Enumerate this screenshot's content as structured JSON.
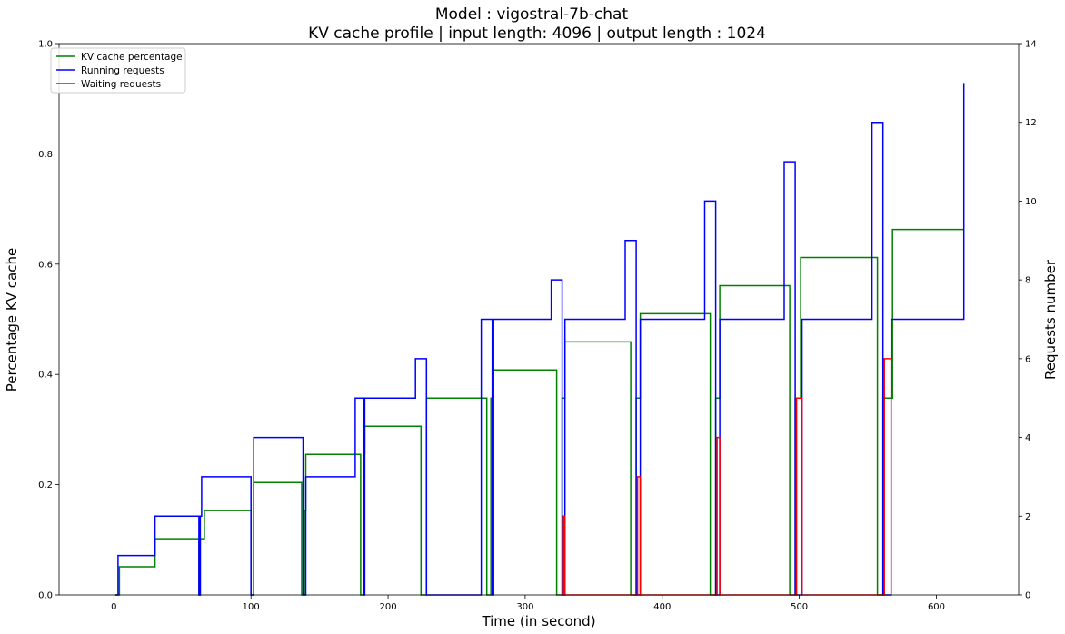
{
  "chart_data": {
    "type": "line",
    "title": "Model : vigostral-7b-chat",
    "subtitle": "KV cache profile | input length: 4096 | output length : 1024",
    "xlabel": "Time (in second)",
    "ylabel": "Percentage KV cache",
    "y2label": "Requests number",
    "xlim": [
      -40,
      660
    ],
    "ylim": [
      0,
      1.0
    ],
    "y2lim": [
      0,
      14
    ],
    "xticks": [
      0,
      100,
      200,
      300,
      400,
      500,
      600
    ],
    "yticks": [
      0.0,
      0.2,
      0.4,
      0.6,
      0.8,
      1.0
    ],
    "y2ticks": [
      0,
      2,
      4,
      6,
      8,
      10,
      12,
      14
    ],
    "legend_position": "top-left",
    "grid": false,
    "series": [
      {
        "name": "KV cache percentage",
        "axis": "left",
        "color": "#008000",
        "x": [
          1,
          4,
          28,
          30,
          60,
          62,
          63,
          64,
          66,
          97,
          100,
          102,
          133,
          137,
          139,
          140,
          176,
          180,
          182,
          183,
          220,
          224,
          228,
          268,
          272,
          275,
          276,
          319,
          323,
          327,
          329,
          373,
          377,
          381,
          383,
          384,
          431,
          435,
          439,
          441,
          442,
          489,
          493,
          497,
          500,
          501,
          553,
          557,
          561,
          567,
          568,
          620
        ],
        "y": [
          0,
          0.051,
          0.051,
          0.102,
          0.102,
          0,
          0.102,
          0.102,
          0.153,
          0.153,
          0,
          0.204,
          0.204,
          0,
          0.153,
          0.255,
          0.255,
          0,
          0.255,
          0.306,
          0.306,
          0,
          0.357,
          0.357,
          0,
          0.357,
          0.408,
          0.408,
          0,
          0.357,
          0.459,
          0.459,
          0,
          0.357,
          0.357,
          0.51,
          0.51,
          0,
          0.357,
          0.357,
          0.561,
          0.561,
          0,
          0.357,
          0.357,
          0.612,
          0.612,
          0,
          0.357,
          0.357,
          0.663,
          0.663
        ]
      },
      {
        "name": "Running requests",
        "axis": "right",
        "color": "#0000ff",
        "x": [
          1,
          3,
          28,
          30,
          60,
          62,
          63,
          64,
          97,
          100,
          102,
          135,
          138,
          140,
          176,
          180,
          182,
          183,
          220,
          224,
          228,
          268,
          272,
          276,
          277,
          319,
          323,
          327,
          329,
          373,
          377,
          381,
          384,
          431,
          435,
          439,
          442,
          489,
          493,
          497,
          502,
          553,
          557,
          561,
          567,
          620
        ],
        "y": [
          0,
          1,
          1,
          2,
          2,
          0,
          2,
          3,
          3,
          0,
          4,
          4,
          0,
          3,
          5,
          5,
          0,
          5,
          6,
          6,
          0,
          7,
          7,
          0,
          7,
          8,
          8,
          0,
          7,
          9,
          9,
          0,
          7,
          10,
          10,
          0,
          7,
          11,
          11,
          0,
          7,
          12,
          12,
          0,
          7,
          13
        ]
      },
      {
        "name": "Waiting requests",
        "axis": "right",
        "color": "#ff0000",
        "x": [
          327,
          328,
          329,
          381,
          382,
          384,
          439,
          440,
          442,
          497,
          498,
          502,
          561,
          562,
          567
        ],
        "y": [
          0,
          2,
          0,
          0,
          3,
          0,
          0,
          4,
          0,
          0,
          5,
          0,
          0,
          6,
          0
        ]
      }
    ]
  }
}
